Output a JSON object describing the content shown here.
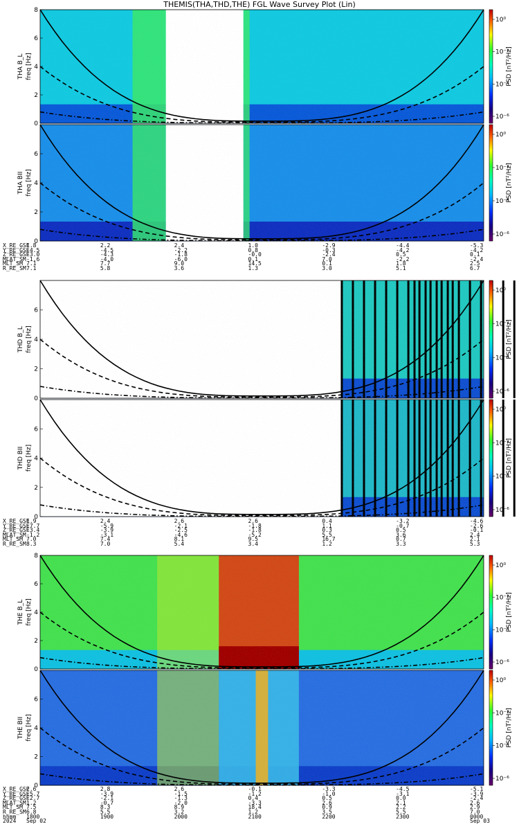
{
  "title": "THEMIS(THA,THD,THE) FGL Wave Survey Plot (Lin)",
  "colors": {
    "ridge_fill": "#ffffff",
    "frame": "#000000"
  },
  "colorbar": {
    "label": "PSD [nT²/Hz]",
    "ticks": [
      "10⁰",
      "10⁻²",
      "10⁻⁴",
      "10⁻⁶"
    ]
  },
  "chart_data": [
    {
      "type": "heatmap",
      "probe": "THA",
      "panels": [
        {
          "name": "THA B_L",
          "ylabel_top": "THA B_L",
          "ylabel": "freq [Hz]",
          "ylim": [
            0,
            8
          ],
          "yticks": [
            "0",
            "2",
            "4",
            "6",
            "8"
          ],
          "data_gaps": [
            [
              1942,
              2045
            ]
          ]
        },
        {
          "name": "THA BII",
          "ylabel_top": "THA BII",
          "ylabel": "freq [Hz]",
          "ylim": [
            0,
            8
          ],
          "yticks": [
            "0",
            "2",
            "4",
            "6"
          ],
          "data_gaps": [
            [
              1942,
              2045
            ]
          ]
        }
      ],
      "ephemeris": {
        "labels": [
          "X_RE_GSE",
          "Y_RE_GSE",
          "Z_RE_GSE",
          "MLAT_SM",
          "MLT_SM",
          "R_RE_SM"
        ],
        "columns": [
          [
            "1.8",
            "-4.5",
            "-3.0",
            "-1.6",
            "7.1",
            "7.1"
          ],
          [
            "2.2",
            "-4.5",
            "-4.3",
            "-4.0",
            "7.7",
            "5.8"
          ],
          [
            "2.4",
            "-2.2",
            "-1.8",
            "-6.0",
            "9.0",
            "3.6"
          ],
          [
            "1.0",
            "0.8",
            "-0.0",
            "0.1",
            "14.5",
            "1.3"
          ],
          [
            "-2.9",
            "-0.3",
            "-2.4",
            "7.0",
            "0.1",
            "3.0"
          ],
          [
            "-4.4",
            "-4.2",
            "0.5",
            "-2.2",
            "1.8",
            "5.1"
          ],
          [
            "-5.3",
            "-4.2",
            "0.1",
            "-2.4",
            "2.5",
            "6.7"
          ]
        ]
      }
    },
    {
      "type": "heatmap",
      "probe": "THD",
      "panels": [
        {
          "name": "THD B_L",
          "ylabel_top": "THD B_L",
          "ylabel": "freq [Hz]",
          "ylim": [
            0,
            8
          ],
          "yticks": [
            "0",
            "2",
            "4",
            "6"
          ],
          "data_start": 2204
        },
        {
          "name": "THD BII",
          "ylabel_top": "THD BII",
          "ylabel": "freq [Hz]",
          "ylim": [
            0,
            8
          ],
          "yticks": [
            "0",
            "2",
            "4",
            "6"
          ],
          "data_start": 2204
        }
      ],
      "ephemeris": {
        "labels": [
          "X_RE_GSE",
          "Y_RE_GSE",
          "Z_RE_GSE",
          "MLAT_SM",
          "MLT_SM",
          "R_RE_SM"
        ],
        "columns": [
          [
            "1.9",
            "-7.7",
            "-3.4",
            "-1.2",
            "7.0",
            "8.3"
          ],
          [
            "2.4",
            "-5.9",
            "-3.9",
            "-3.1",
            "7.4",
            "7.0"
          ],
          [
            "2.6",
            "-2.1",
            "-2.5",
            "-4.6",
            "8.1",
            "5.4"
          ],
          [
            "2.6",
            "-1.8",
            "-1.8",
            "-5.2",
            "9.5",
            "3.4"
          ],
          [
            "0.4",
            "1.1",
            "0.3",
            "5.5",
            "16.7",
            "1.2"
          ],
          [
            "-3.2",
            "-0.7",
            "0.5",
            "3.6",
            "0.7",
            "3.3"
          ],
          [
            "-4.6",
            "-2.6",
            "-0.1",
            "2.4",
            "2.1",
            "5.3"
          ]
        ]
      }
    },
    {
      "type": "heatmap",
      "probe": "THE",
      "panels": [
        {
          "name": "THE B_L",
          "ylabel_top": "THE B_L",
          "ylabel": "freq [Hz]",
          "ylim": [
            0,
            8
          ],
          "yticks": [
            "0",
            "2",
            "4",
            "6",
            "8"
          ]
        },
        {
          "name": "THE BII",
          "ylabel_top": "THE BII",
          "ylabel": "freq [Hz]",
          "ylim": [
            0,
            8
          ],
          "yticks": [
            "0",
            "2",
            "4",
            "6"
          ]
        }
      ],
      "ephemeris": {
        "labels": [
          "X_RE_GSE",
          "Y_RE_GSE",
          "Z_RE_GSE",
          "MLAT_SM",
          "MLT_SM",
          "R_RE_SM",
          "hhmm",
          "2024"
        ],
        "columns": [
          [
            "2.6",
            "-5.7",
            "-2.7",
            "1.2",
            "7.5",
            "6.8",
            "1800",
            "Sep 02"
          ],
          [
            "2.8",
            "-3.9",
            "-2.1",
            "-0.7",
            "8.3",
            "5.5",
            "1900",
            ""
          ],
          [
            "2.6",
            "-1.5",
            "-1.3",
            "-2.0",
            "8.9",
            "3.2",
            "2000",
            ""
          ],
          [
            "-0.1",
            "-1.2",
            "0.4",
            "-3.3",
            "18.4",
            "1.2",
            "2100",
            ""
          ],
          [
            "-3.3",
            "-1.0",
            "0.5",
            "2.6",
            "0.9",
            "3.5",
            "2200",
            ""
          ],
          [
            "-4.5",
            "-3.1",
            "0.0",
            "2.1",
            "2.2",
            "5.5",
            "2300",
            ""
          ],
          [
            "-5.1",
            "-3.9",
            "-2.4",
            "2.6",
            "2.9",
            "7.0",
            "0000",
            "Sep 03"
          ]
        ]
      }
    }
  ]
}
